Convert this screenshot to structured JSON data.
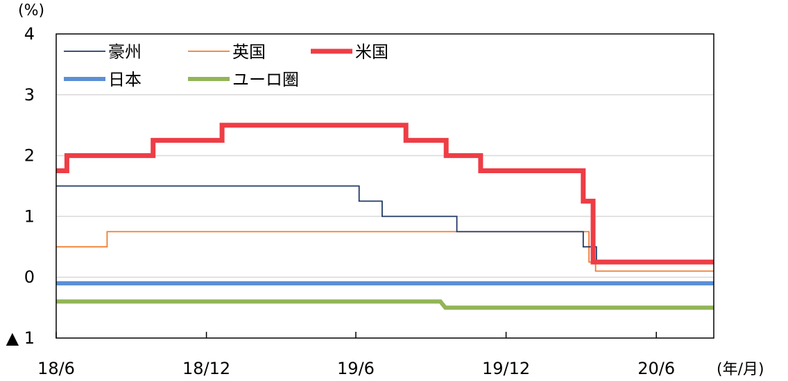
{
  "chart_data": {
    "type": "line",
    "ylabel": "(%)",
    "xunit": "(年/月)",
    "ylim": [
      -1,
      4
    ],
    "y_ticks": [
      {
        "value": 4,
        "label": "4"
      },
      {
        "value": 3,
        "label": "3"
      },
      {
        "value": 2,
        "label": "2"
      },
      {
        "value": 1,
        "label": "1"
      },
      {
        "value": 0,
        "label": "0"
      },
      {
        "value": -1,
        "label": "▲ 1"
      }
    ],
    "xlim": [
      "2018-06-01",
      "2020-08-10"
    ],
    "x_ticks": [
      {
        "date": "2018-06-01",
        "label": "18/6"
      },
      {
        "date": "2018-12-01",
        "label": "18/12"
      },
      {
        "date": "2019-06-01",
        "label": "19/6"
      },
      {
        "date": "2019-12-01",
        "label": "19/12"
      },
      {
        "date": "2020-06-01",
        "label": "20/6"
      }
    ],
    "grid": true,
    "legend_placement": "top-left",
    "series": [
      {
        "name": "豪州",
        "color": "#1f3864",
        "width": 1.8,
        "step": true,
        "points": [
          [
            "2018-06-01",
            1.5
          ],
          [
            "2019-06-05",
            1.25
          ],
          [
            "2019-07-03",
            1.0
          ],
          [
            "2019-10-02",
            0.75
          ],
          [
            "2020-03-04",
            0.5
          ],
          [
            "2020-03-20",
            0.25
          ],
          [
            "2020-08-10",
            0.25
          ]
        ]
      },
      {
        "name": "英国",
        "color": "#ed7d31",
        "width": 1.8,
        "step": true,
        "points": [
          [
            "2018-06-01",
            0.5
          ],
          [
            "2018-08-02",
            0.75
          ],
          [
            "2020-03-11",
            0.25
          ],
          [
            "2020-03-19",
            0.1
          ],
          [
            "2020-08-10",
            0.1
          ]
        ]
      },
      {
        "name": "米国",
        "color": "#ee3d45",
        "width": 7,
        "step": true,
        "points": [
          [
            "2018-06-01",
            1.75
          ],
          [
            "2018-06-14",
            2.0
          ],
          [
            "2018-09-27",
            2.25
          ],
          [
            "2018-12-20",
            2.5
          ],
          [
            "2019-08-01",
            2.25
          ],
          [
            "2019-09-19",
            2.0
          ],
          [
            "2019-10-31",
            1.75
          ],
          [
            "2020-03-04",
            1.25
          ],
          [
            "2020-03-16",
            0.25
          ],
          [
            "2020-08-10",
            0.25
          ]
        ]
      },
      {
        "name": "日本",
        "color": "#5b8fd6",
        "width": 6,
        "step": true,
        "points": [
          [
            "2018-06-01",
            -0.1
          ],
          [
            "2020-08-10",
            -0.1
          ]
        ]
      },
      {
        "name": "ユーロ圏",
        "color": "#92b557",
        "width": 6,
        "step": false,
        "points": [
          [
            "2018-06-01",
            -0.4
          ],
          [
            "2019-09-12",
            -0.4
          ],
          [
            "2019-09-18",
            -0.5
          ],
          [
            "2020-08-10",
            -0.5
          ]
        ]
      }
    ]
  }
}
